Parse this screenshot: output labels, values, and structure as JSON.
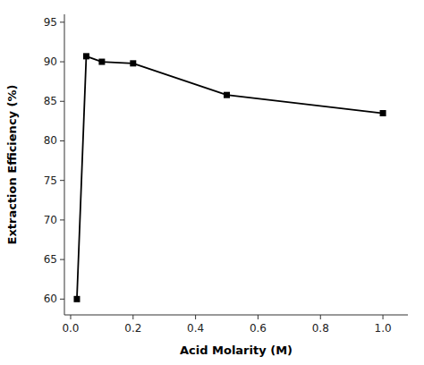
{
  "chart_data": {
    "type": "line",
    "x": [
      0.02,
      0.05,
      0.1,
      0.2,
      0.5,
      1.0
    ],
    "values": [
      60.0,
      90.7,
      90.0,
      89.8,
      85.8,
      83.5
    ],
    "xlabel": "Acid Molarity (M)",
    "ylabel": "Extraction Efficiency (%)",
    "xlim": [
      -0.02,
      1.08
    ],
    "ylim": [
      58,
      96
    ],
    "xticks": [
      {
        "value": 0.0,
        "label": "0.0"
      },
      0.2,
      0.4,
      0.6,
      0.8,
      {
        "value": 1.0,
        "label": "1.0"
      }
    ],
    "yticks": [
      60,
      65,
      70,
      75,
      80,
      85,
      90,
      95
    ],
    "color": "#000000",
    "marker": "square",
    "grid": false
  }
}
